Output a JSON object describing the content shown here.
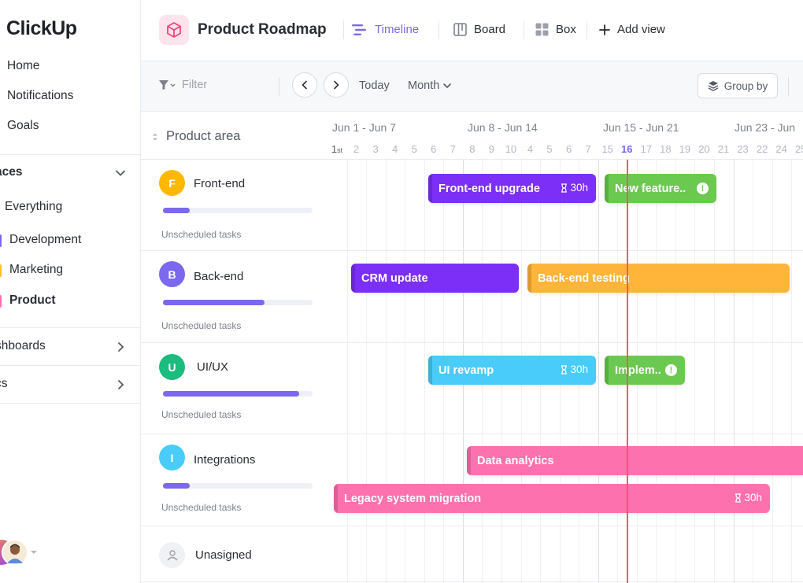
{
  "sidebar": {
    "logo": "ClickUp",
    "nav": [
      {
        "label": "Home"
      },
      {
        "label": "Notifications"
      },
      {
        "label": "Goals"
      }
    ],
    "spaces_header": "aces",
    "spaces": [
      {
        "label": "Everything",
        "color": ""
      },
      {
        "label": "Development",
        "color": "#7b68ee"
      },
      {
        "label": "Marketing",
        "color": "#ffbd2e"
      },
      {
        "label": "Product",
        "color": "#fd71af"
      }
    ],
    "dashboards": "shboards",
    "docs": "cs"
  },
  "header": {
    "title": "Product Roadmap",
    "views": [
      {
        "label": "Timeline",
        "icon": "timeline-icon",
        "active": true
      },
      {
        "label": "Board",
        "icon": "board-icon"
      },
      {
        "label": "Box",
        "icon": "box-icon"
      },
      {
        "label": "Add view",
        "icon": "plus-icon"
      }
    ]
  },
  "toolbar": {
    "filter_placeholder": "Filter",
    "today": "Today",
    "scale": "Month",
    "group_by": "Group by"
  },
  "timeline": {
    "area_label": "Product area",
    "weeks": [
      "Jun 1 - Jun 7",
      "Jun 8 - Jun 14",
      "Jun 15 - Jun 21",
      "Jun 23 - Jun"
    ],
    "days": [
      "1st",
      "2",
      "3",
      "4",
      "5",
      "6",
      "7",
      "8",
      "9",
      "10",
      "4",
      "5",
      "6",
      "7",
      "15",
      "16",
      "17",
      "18",
      "19",
      "20",
      "21",
      "23",
      "22",
      "24",
      "25"
    ],
    "today": "16"
  },
  "rows": [
    {
      "initial": "F",
      "name": "Front-end",
      "color": "#ffb800",
      "progress": 0.18,
      "unscheduled": "Unscheduled tasks"
    },
    {
      "initial": "B",
      "name": "Back-end",
      "color": "#7b68ee",
      "progress": 0.68,
      "unscheduled": "Unscheduled tasks"
    },
    {
      "initial": "U",
      "name": "UI/UX",
      "color": "#1bbc7d",
      "progress": 0.91,
      "unscheduled": "Unscheduled tasks"
    },
    {
      "initial": "I",
      "name": "Integrations",
      "color": "#49ccf9",
      "progress": 0.18,
      "unscheduled": "Unscheduled tasks"
    },
    {
      "name": "Unasigned"
    }
  ],
  "tasks": [
    {
      "label": "Front-end upgrade",
      "est": "30h",
      "color": "#7b2ff7"
    },
    {
      "label": "New feature..",
      "color": "#6bc950",
      "warn": "!"
    },
    {
      "label": "CRM update",
      "color": "#7b2ff7"
    },
    {
      "label": "Back-end testing",
      "color": "#ffb43a"
    },
    {
      "label": "UI revamp",
      "est": "30h",
      "color": "#49ccf9"
    },
    {
      "label": "Implem..",
      "color": "#6bc950",
      "warn": "!"
    },
    {
      "label": "Data analytics",
      "color": "#fd71af"
    },
    {
      "label": "Legacy system migration",
      "est": "30h",
      "color": "#fd71af"
    }
  ]
}
